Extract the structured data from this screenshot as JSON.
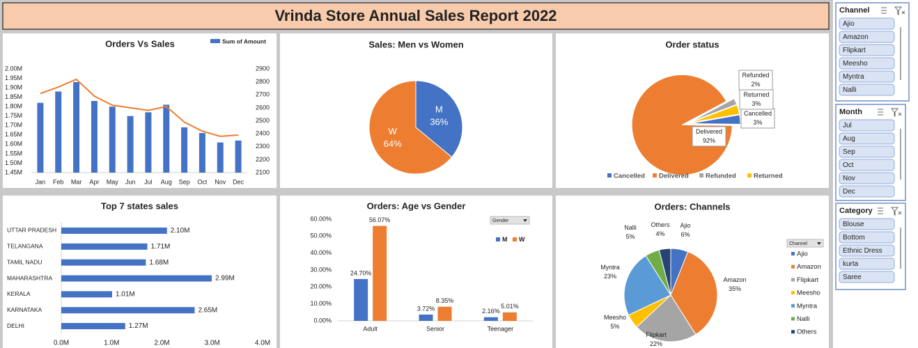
{
  "title": "Vrinda Store Annual Sales Report 2022",
  "slicers": [
    {
      "title": "Channel",
      "items": [
        "Ajio",
        "Amazon",
        "Flipkart",
        "Meesho",
        "Myntra",
        "Nalli"
      ]
    },
    {
      "title": "Month",
      "items": [
        "Jul",
        "Aug",
        "Sep",
        "Oct",
        "Nov",
        "Dec"
      ]
    },
    {
      "title": "Category",
      "items": [
        "Blouse",
        "Bottom",
        "Ethnic Dress",
        "kurta",
        "Saree"
      ]
    }
  ],
  "chart_data": [
    {
      "type": "combo",
      "title": "Orders Vs Sales",
      "categories": [
        "Jan",
        "Feb",
        "Mar",
        "Apr",
        "May",
        "Jun",
        "Jul",
        "Aug",
        "Sep",
        "Oct",
        "Nov",
        "Dec"
      ],
      "series": [
        {
          "name": "Sum of Amount",
          "kind": "bar",
          "color": "#4472c4",
          "values": [
            1820000,
            1880000,
            1930000,
            1830000,
            1800000,
            1750000,
            1770000,
            1810000,
            1690000,
            1660000,
            1610000,
            1620000
          ]
        },
        {
          "kind": "line",
          "axis": "y2",
          "color": "#ed7d31",
          "values": [
            2710,
            2760,
            2820,
            2690,
            2620,
            2600,
            2580,
            2610,
            2490,
            2420,
            2380,
            2390
          ]
        }
      ],
      "ylim": [
        1450000,
        2000000
      ],
      "yticks": [
        {
          "value": 1450000,
          "label": "1.45M"
        },
        {
          "value": 1500000,
          "label": "1.50M"
        },
        {
          "value": 1550000,
          "label": "1.55M"
        },
        {
          "value": 1600000,
          "label": "1.60M"
        },
        {
          "value": 1650000,
          "label": "1.65M"
        },
        {
          "value": 1700000,
          "label": "1.70M"
        },
        {
          "value": 1750000,
          "label": "1.75M"
        },
        {
          "value": 1800000,
          "label": "1.80M"
        },
        {
          "value": 1850000,
          "label": "1.85M"
        },
        {
          "value": 1900000,
          "label": "1.90M"
        },
        {
          "value": 1950000,
          "label": "1.95M"
        },
        {
          "value": 2000000,
          "label": "2.00M"
        }
      ],
      "y2lim": [
        2100,
        2900
      ],
      "y2ticks": [
        2100,
        2200,
        2300,
        2400,
        2500,
        2600,
        2700,
        2800,
        2900
      ],
      "legend": "top-right"
    },
    {
      "type": "pie",
      "title": "Sales: Men vs Women",
      "categories": [
        "M",
        "W"
      ],
      "values": [
        36,
        64
      ],
      "value_labels": [
        "36%",
        "64%"
      ],
      "colors": [
        "#4472c4",
        "#ed7d31"
      ],
      "data_labels": "inside"
    },
    {
      "type": "pie",
      "title": "Order status",
      "categories": [
        "Cancelled",
        "Delivered",
        "Refunded",
        "Returned"
      ],
      "values": [
        3,
        92,
        2,
        3
      ],
      "value_labels": [
        "3%",
        "92%",
        "2%",
        "3%"
      ],
      "colors": [
        "#4472c4",
        "#ed7d31",
        "#a5a5a5",
        "#ffc000"
      ],
      "data_labels": "callout",
      "legend": "bottom"
    },
    {
      "type": "bar",
      "orientation": "horizontal",
      "title": "Top 7 states sales",
      "categories": [
        "UTTAR PRADESH",
        "TELANGANA",
        "TAMIL NADU",
        "MAHARASHTRA",
        "KERALA",
        "KARNATAKA",
        "DELHI"
      ],
      "values": [
        2100000,
        1710000,
        1680000,
        2990000,
        1010000,
        2650000,
        1270000
      ],
      "value_labels": [
        "2.10M",
        "1.71M",
        "1.68M",
        "2.99M",
        "1.01M",
        "2.65M",
        "1.27M"
      ],
      "color": "#4472c4",
      "xlim": [
        0,
        4000000
      ],
      "xticks": [
        {
          "value": 0,
          "label": "0.0M"
        },
        {
          "value": 1000000,
          "label": "1.0M"
        },
        {
          "value": 2000000,
          "label": "2.0M"
        },
        {
          "value": 3000000,
          "label": "3.0M"
        },
        {
          "value": 4000000,
          "label": "4.0M"
        }
      ]
    },
    {
      "type": "bar",
      "title": "Orders: Age vs Gender",
      "categories": [
        "Adult",
        "Senior",
        "Teenager"
      ],
      "series": [
        {
          "name": "M",
          "color": "#4472c4",
          "values": [
            24.7,
            3.72,
            2.16
          ],
          "value_labels": [
            "24.70%",
            "3.72%",
            "2.16%"
          ]
        },
        {
          "name": "W",
          "color": "#ed7d31",
          "values": [
            56.07,
            8.35,
            5.01
          ],
          "value_labels": [
            "56.07%",
            "8.35%",
            "5.01%"
          ]
        }
      ],
      "ylim": [
        0,
        60
      ],
      "yticks": [
        {
          "value": 0,
          "label": "0.00%"
        },
        {
          "value": 10,
          "label": "10.00%"
        },
        {
          "value": 20,
          "label": "20.00%"
        },
        {
          "value": 30,
          "label": "30.00%"
        },
        {
          "value": 40,
          "label": "40.00%"
        },
        {
          "value": 50,
          "label": "50.00%"
        },
        {
          "value": 60,
          "label": "60.00%"
        }
      ],
      "filter_label": "Gender",
      "legend": "top-right"
    },
    {
      "type": "pie",
      "title": "Orders: Channels",
      "categories": [
        "Ajio",
        "Amazon",
        "Flipkart",
        "Meesho",
        "Myntra",
        "Nalli",
        "Others"
      ],
      "values": [
        6,
        35,
        22,
        5,
        23,
        5,
        4
      ],
      "value_labels": [
        "6%",
        "35%",
        "22%",
        "5%",
        "23%",
        "5%",
        "4%"
      ],
      "colors": [
        "#4472c4",
        "#ed7d31",
        "#a5a5a5",
        "#ffc000",
        "#5b9bd5",
        "#70ad47",
        "#264478"
      ],
      "data_labels": "outside",
      "filter_label": "Channel",
      "legend": "right"
    }
  ]
}
